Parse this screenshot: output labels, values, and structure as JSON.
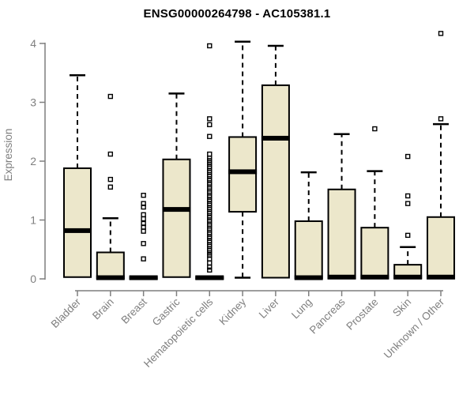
{
  "chart_data": {
    "type": "boxplot",
    "title": "ENSG00000264798 - AC105381.1",
    "ylabel": "Expression",
    "xlabel": "",
    "ylim": [
      0,
      4.2
    ],
    "yticks": [
      0,
      1,
      2,
      3,
      4
    ],
    "grid": false,
    "legend": "none",
    "colors": {
      "box_fill": "#ece7cb",
      "box_stroke": "#000000",
      "median": "#000000",
      "whisker": "#000000",
      "outlier": "#000000",
      "axis": "#7f7f7f",
      "title": "#000000",
      "background": "#ffffff"
    },
    "categories": [
      "Bladder",
      "Brain",
      "Breast",
      "Gastric",
      "Hematopoietic cells",
      "Kidney",
      "Liver",
      "Lung",
      "Pancreas",
      "Prostate",
      "Skin",
      "Unknown / Other"
    ],
    "boxes": [
      {
        "name": "Bladder",
        "whisker_low": 0.03,
        "q1": 0.03,
        "median": 0.82,
        "q3": 1.88,
        "whisker_high": 3.46,
        "outliers": []
      },
      {
        "name": "Brain",
        "whisker_low": 0.0,
        "q1": 0.01,
        "median": 0.02,
        "q3": 0.45,
        "whisker_high": 1.03,
        "outliers": [
          3.1,
          2.12,
          1.69,
          1.56
        ]
      },
      {
        "name": "Breast",
        "whisker_low": 0.0,
        "q1": 0.0,
        "median": 0.02,
        "q3": 0.03,
        "whisker_high": 0.03,
        "outliers": [
          1.42,
          1.28,
          1.22,
          1.09,
          1.02,
          0.94,
          0.88,
          0.81,
          0.6,
          0.34
        ]
      },
      {
        "name": "Gastric",
        "whisker_low": 0.03,
        "q1": 0.03,
        "median": 1.18,
        "q3": 2.03,
        "whisker_high": 3.15,
        "outliers": []
      },
      {
        "name": "Hematopoietic cells",
        "whisker_low": 0.0,
        "q1": 0.0,
        "median": 0.02,
        "q3": 0.03,
        "whisker_high": 0.03,
        "outliers": [
          3.96,
          2.72,
          2.62,
          2.42,
          2.12,
          2.05,
          2.01,
          1.98,
          1.95,
          1.91,
          1.88,
          1.84,
          1.81,
          1.77,
          1.74,
          1.7,
          1.67,
          1.63,
          1.6,
          1.56,
          1.53,
          1.49,
          1.46,
          1.42,
          1.39,
          1.35,
          1.32,
          1.28,
          1.25,
          1.21,
          1.18,
          1.14,
          1.11,
          1.07,
          1.04,
          1.0,
          0.97,
          0.93,
          0.9,
          0.86,
          0.83,
          0.79,
          0.76,
          0.72,
          0.69,
          0.65,
          0.62,
          0.58,
          0.55,
          0.51,
          0.48,
          0.44,
          0.4,
          0.34,
          0.27,
          0.2,
          0.15
        ]
      },
      {
        "name": "Kidney",
        "whisker_low": 0.02,
        "q1": 1.14,
        "median": 1.82,
        "q3": 2.41,
        "whisker_high": 4.03,
        "outliers": []
      },
      {
        "name": "Liver",
        "whisker_low": 0.02,
        "q1": 0.02,
        "median": 2.39,
        "q3": 3.29,
        "whisker_high": 3.96,
        "outliers": []
      },
      {
        "name": "Lung",
        "whisker_low": 0.0,
        "q1": 0.01,
        "median": 0.02,
        "q3": 0.98,
        "whisker_high": 1.81,
        "outliers": []
      },
      {
        "name": "Pancreas",
        "whisker_low": 0.0,
        "q1": 0.01,
        "median": 0.03,
        "q3": 1.52,
        "whisker_high": 2.46,
        "outliers": []
      },
      {
        "name": "Prostate",
        "whisker_low": 0.0,
        "q1": 0.01,
        "median": 0.03,
        "q3": 0.87,
        "whisker_high": 1.83,
        "outliers": [
          2.55
        ]
      },
      {
        "name": "Skin",
        "whisker_low": 0.0,
        "q1": 0.01,
        "median": 0.03,
        "q3": 0.24,
        "whisker_high": 0.54,
        "outliers": [
          2.08,
          1.41,
          1.28,
          0.74
        ]
      },
      {
        "name": "Unknown / Other",
        "whisker_low": 0.0,
        "q1": 0.01,
        "median": 0.03,
        "q3": 1.05,
        "whisker_high": 2.63,
        "outliers": [
          4.17,
          2.72
        ]
      }
    ]
  }
}
